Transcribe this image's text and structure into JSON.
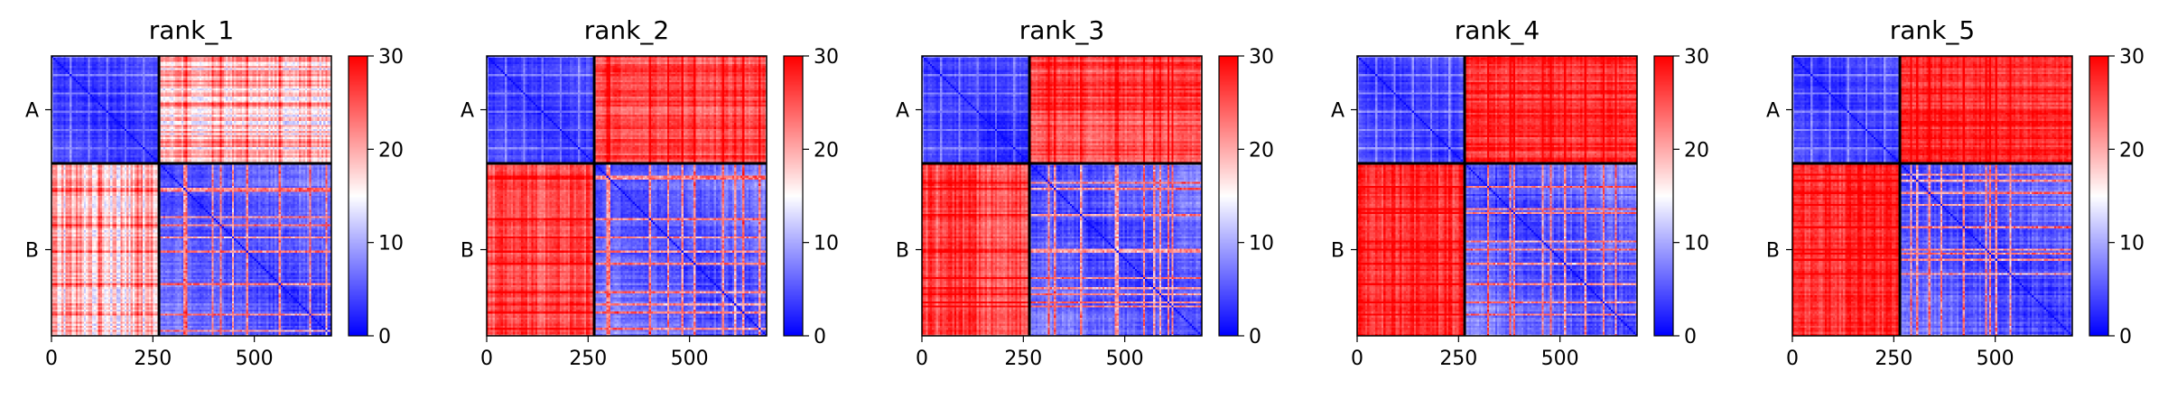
{
  "chart_data": {
    "type": "heatmap",
    "colormap": {
      "name": "bwr",
      "low": "#0000ff",
      "mid": "#ffffff",
      "high": "#ff0000"
    },
    "value_range": [
      0,
      30
    ],
    "colorbar_ticks": [
      "0",
      "10",
      "20",
      "30"
    ],
    "x_range": [
      0,
      690
    ],
    "x_ticks": [
      "0",
      "250",
      "500"
    ],
    "chain_boundary": 265,
    "chains": [
      {
        "label": "A",
        "start": 0,
        "end": 265
      },
      {
        "label": "B",
        "start": 265,
        "end": 690
      }
    ],
    "panels": [
      {
        "title": "rank_1",
        "inter_chain_mean": 19,
        "stripe_variation": 6
      },
      {
        "title": "rank_2",
        "inter_chain_mean": 25.5,
        "stripe_variation": 3
      },
      {
        "title": "rank_3",
        "inter_chain_mean": 26,
        "stripe_variation": 3
      },
      {
        "title": "rank_4",
        "inter_chain_mean": 27,
        "stripe_variation": 2.5
      },
      {
        "title": "rank_5",
        "inter_chain_mean": 27.5,
        "stripe_variation": 2.5
      }
    ]
  }
}
